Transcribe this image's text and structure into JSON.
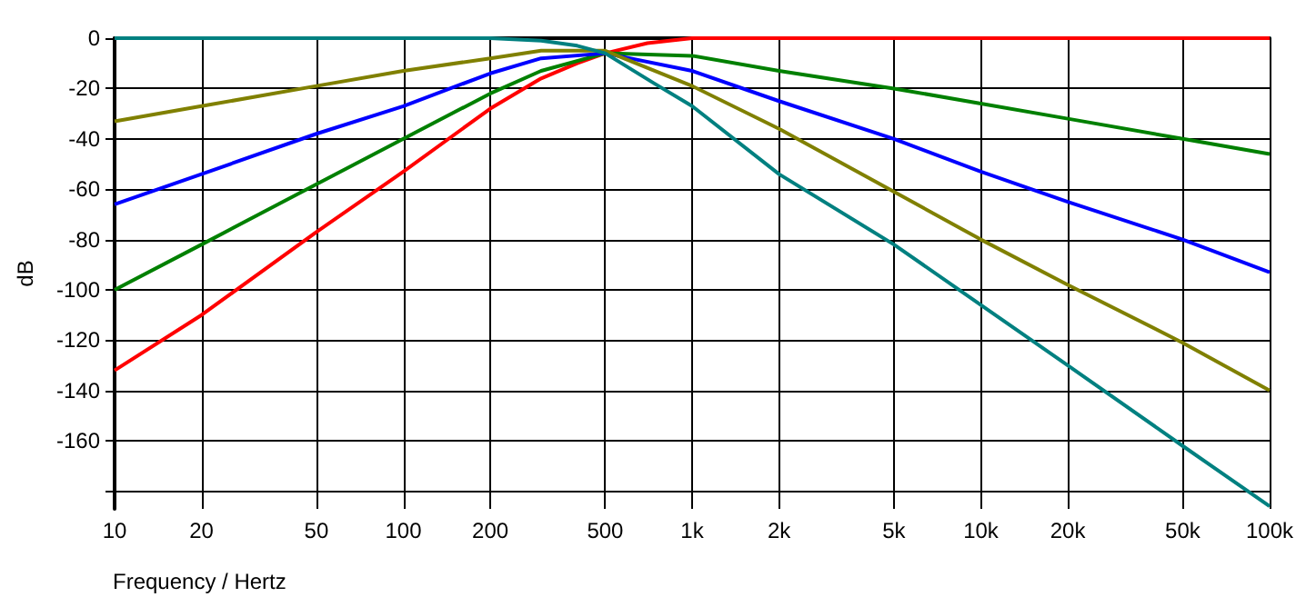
{
  "chart_data": {
    "type": "line",
    "xlabel": "Frequency / Hertz",
    "ylabel": "dB",
    "log": "x",
    "grid": true,
    "marker": "none",
    "line_style": "solid",
    "xlim": [
      10,
      100000
    ],
    "ylim": [
      -187,
      0
    ],
    "xticks": [
      10,
      20,
      50,
      100,
      200,
      500,
      {
        "value": 1000,
        "label": "1k"
      },
      {
        "value": 2000,
        "label": "2k"
      },
      {
        "value": 5000,
        "label": "5k"
      },
      {
        "value": 10000,
        "label": "10k"
      },
      {
        "value": 20000,
        "label": "20k"
      },
      {
        "value": 50000,
        "label": "50k"
      },
      {
        "value": 100000,
        "label": "100k"
      }
    ],
    "yticks": [
      {
        "value": -180,
        "label": null
      },
      -160,
      -140,
      -120,
      -100,
      -80,
      -60,
      -40,
      -20,
      0
    ],
    "series": [
      {
        "color": "#ff0000",
        "x": [
          10,
          20,
          50,
          100,
          200,
          300,
          400,
          500,
          700,
          1000,
          2000,
          5000,
          10000,
          20000,
          50000,
          100000
        ],
        "values": [
          -132,
          -110,
          -77,
          -53,
          -28,
          -16,
          -10,
          -6,
          -2,
          0,
          0,
          0,
          0,
          0,
          0,
          0
        ]
      },
      {
        "color": "#008000",
        "x": [
          10,
          20,
          50,
          100,
          200,
          300,
          500,
          1000,
          2000,
          5000,
          10000,
          20000,
          50000,
          100000
        ],
        "values": [
          -100,
          -82,
          -58,
          -40,
          -22,
          -13,
          -6,
          -7,
          -13,
          -20,
          -26,
          -32,
          -40,
          -46
        ]
      },
      {
        "color": "#0000ff",
        "x": [
          10,
          20,
          50,
          100,
          200,
          300,
          500,
          1000,
          2000,
          5000,
          10000,
          20000,
          50000,
          100000
        ],
        "values": [
          -66,
          -54,
          -38,
          -27,
          -14,
          -8,
          -6,
          -13,
          -25,
          -40,
          -53,
          -65,
          -80,
          -93
        ]
      },
      {
        "color": "#808000",
        "x": [
          10,
          20,
          50,
          100,
          200,
          300,
          500,
          1000,
          2000,
          5000,
          10000,
          20000,
          50000,
          100000
        ],
        "values": [
          -33,
          -27,
          -19,
          -13,
          -8,
          -5,
          -5,
          -19,
          -36,
          -61,
          -80,
          -98,
          -121,
          -140
        ]
      },
      {
        "color": "#008080",
        "x": [
          10,
          200,
          300,
          400,
          500,
          740,
          1000,
          2000,
          5000,
          10000,
          20000,
          50000,
          100000
        ],
        "values": [
          0,
          0,
          -1,
          -3,
          -6,
          -18,
          -27,
          -54,
          -82,
          -106,
          -130,
          -162,
          -186
        ]
      }
    ]
  }
}
